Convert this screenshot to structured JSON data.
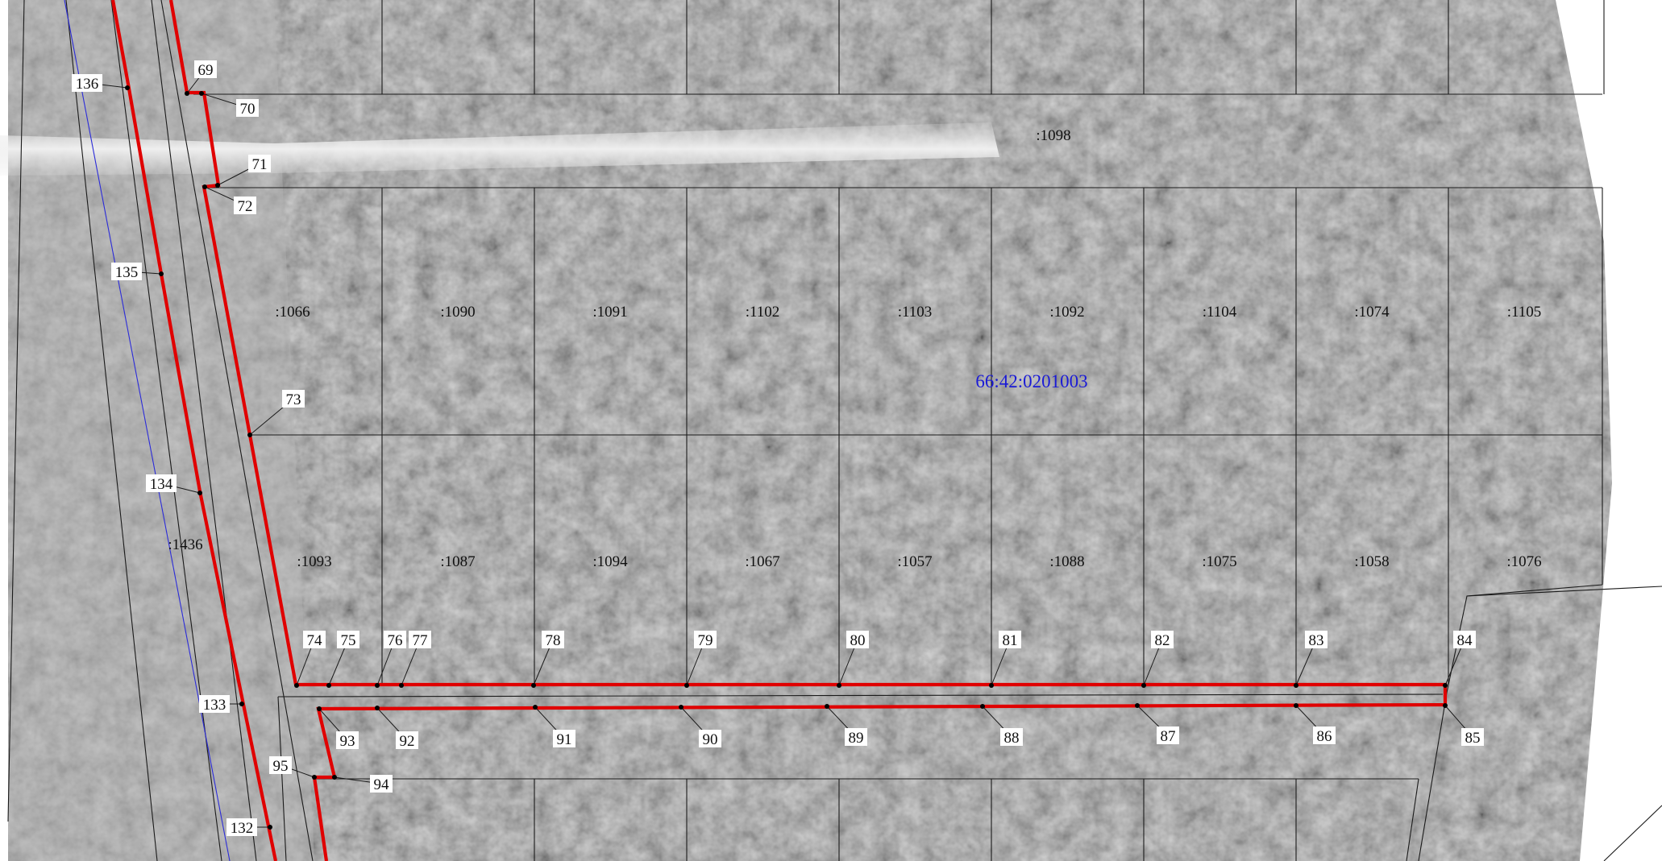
{
  "map": {
    "block_number": "66:42:0201003",
    "block_color": "#1a1ad6",
    "boundary_color": "#e00000",
    "parcel_line_color": "#1a1a1a",
    "background": "aerial-photo-grayscale",
    "parcels": [
      ":1098",
      ":1066",
      ":1090",
      ":1091",
      ":1102",
      ":1103",
      ":1092",
      ":1104",
      ":1074",
      ":1105",
      ":1093",
      ":1087",
      ":1094",
      ":1067",
      ":1057",
      ":1088",
      ":1075",
      ":1058",
      ":1076",
      ":1436"
    ],
    "points": [
      "69",
      "70",
      "71",
      "72",
      "73",
      "74",
      "75",
      "76",
      "77",
      "78",
      "79",
      "80",
      "81",
      "82",
      "83",
      "84",
      "85",
      "86",
      "87",
      "88",
      "89",
      "90",
      "91",
      "92",
      "93",
      "94",
      "95",
      "132",
      "133",
      "134",
      "135",
      "136"
    ]
  }
}
